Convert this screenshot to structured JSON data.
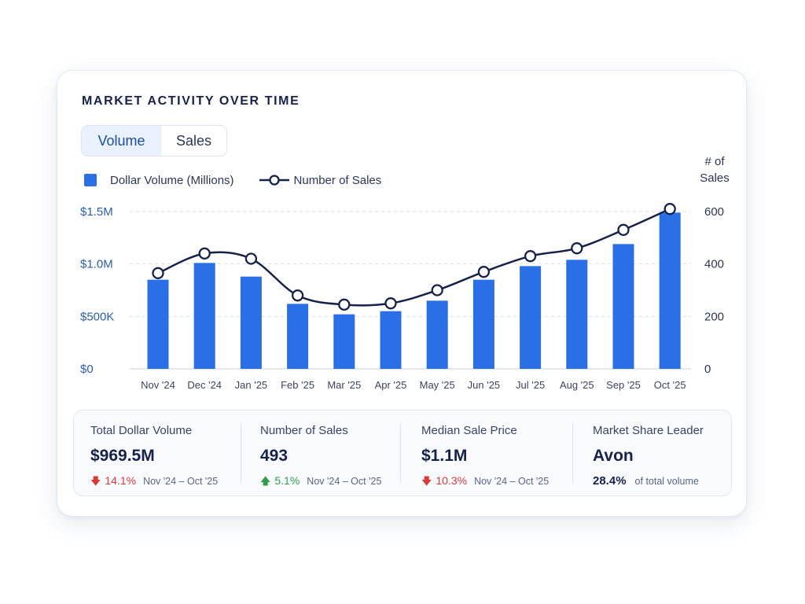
{
  "header": {
    "title": "MARKET ACTIVITY OVER TIME"
  },
  "toggle": {
    "options": [
      "Volume",
      "Sales"
    ],
    "selected": "Volume"
  },
  "legend": {
    "bars_label": "Dollar Volume (Millions)",
    "line_label": "Number of Sales"
  },
  "colors": {
    "bar": "#2b6fe6",
    "line": "#17224a",
    "axis_left": "#2a5db0",
    "down": "#d93a36",
    "up": "#2e9e48"
  },
  "chart_data": {
    "type": "bar",
    "categories": [
      "Nov '24",
      "Dec '24",
      "Jan '25",
      "Feb '25",
      "Mar '25",
      "Apr '25",
      "May '25",
      "Jun '25",
      "Jul '25",
      "Aug '25",
      "Sep '25",
      "Oct '25"
    ],
    "series": [
      {
        "name": "Dollar Volume (Millions)",
        "type": "bar",
        "axis": "left",
        "values": [
          0.85,
          1.01,
          0.88,
          0.62,
          0.52,
          0.55,
          0.65,
          0.85,
          0.98,
          1.04,
          1.19,
          1.49
        ]
      },
      {
        "name": "Number of Sales",
        "type": "line",
        "axis": "right",
        "values": [
          365,
          440,
          420,
          280,
          245,
          250,
          300,
          370,
          430,
          460,
          530,
          610
        ]
      }
    ],
    "y_left": {
      "ticks": [
        0,
        0.5,
        1.0,
        1.5
      ],
      "tick_labels": [
        "$0",
        "$500K",
        "$1.0M",
        "$1.5M"
      ],
      "range": [
        0,
        1.5
      ]
    },
    "y_right": {
      "title_lines": [
        "# of",
        "Sales"
      ],
      "ticks": [
        0,
        200,
        400,
        600
      ],
      "tick_labels": [
        "0",
        "200",
        "400",
        "600"
      ],
      "range": [
        0,
        600
      ]
    },
    "grid": true,
    "legend_position": "top-left"
  },
  "stats": [
    {
      "label": "Total Dollar Volume",
      "value": "$969.5M",
      "direction": "down",
      "change": "14.1%",
      "period": "Nov '24 – Oct '25"
    },
    {
      "label": "Number of Sales",
      "value": "493",
      "direction": "up",
      "change": "5.1%",
      "period": "Nov '24 – Oct '25"
    },
    {
      "label": "Median Sale Price",
      "value": "$1.1M",
      "direction": "down",
      "change": "10.3%",
      "period": "Nov '24 – Oct '25"
    }
  ],
  "leader": {
    "label": "Market Share Leader",
    "value": "Avon",
    "percent": "28.4%",
    "note": "of total volume"
  }
}
